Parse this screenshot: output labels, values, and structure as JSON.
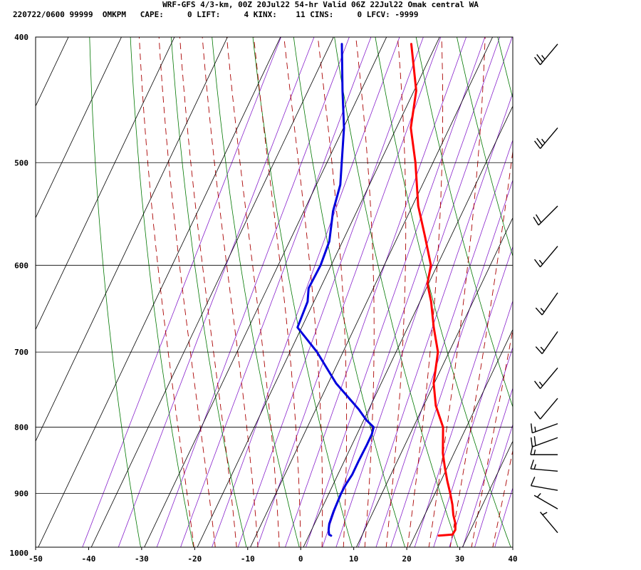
{
  "header": {
    "line1": "WRF-GFS 4/3-km, 00Z 20Jul22 54-hr Valid 06Z 22Jul22 Omak central WA",
    "line2": "220722/0600 99999  OMKPM   CAPE:     0 LIFT:     4 KINX:    11 CINS:     0 LFCV: -9999"
  },
  "colors": {
    "temperature": "#ff0000",
    "dewpoint": "#0000dd",
    "isotherm": "#000000",
    "dry_adiabat": "#007700",
    "moist_adiabat": "#aa0000",
    "mixing_ratio": "#8822cc",
    "wind_barb": "#000000"
  },
  "chart_data": {
    "type": "line",
    "title": "",
    "xlabel": "",
    "ylabel": "",
    "x_ticks": [
      -50,
      -40,
      -30,
      -20,
      -10,
      0,
      10,
      20,
      30,
      40
    ],
    "y_ticks": [
      400,
      500,
      600,
      700,
      800,
      900,
      1000
    ],
    "xlim": [
      -50,
      40
    ],
    "ylim": [
      1050,
      400
    ],
    "y_scale": "log-pressure",
    "grid": true,
    "legend": "none",
    "series": [
      {
        "key": "temperature",
        "points": [
          [
            970,
            24.5
          ],
          [
            968,
            27.0
          ],
          [
            960,
            27.1
          ],
          [
            950,
            26.6
          ],
          [
            935,
            25.4
          ],
          [
            918,
            24.3
          ],
          [
            900,
            22.9
          ],
          [
            880,
            21.2
          ],
          [
            860,
            19.6
          ],
          [
            838,
            17.9
          ],
          [
            800,
            15.6
          ],
          [
            770,
            12.3
          ],
          [
            740,
            9.9
          ],
          [
            700,
            7.9
          ],
          [
            670,
            4.9
          ],
          [
            640,
            2.1
          ],
          [
            620,
            -0.2
          ],
          [
            600,
            -1.2
          ],
          [
            570,
            -4.9
          ],
          [
            540,
            -8.9
          ],
          [
            500,
            -13.3
          ],
          [
            470,
            -17.3
          ],
          [
            440,
            -19.6
          ],
          [
            405,
            -24.7
          ]
        ]
      },
      {
        "key": "dewpoint",
        "points": [
          [
            970,
            4.2
          ],
          [
            968,
            3.7
          ],
          [
            960,
            3.2
          ],
          [
            950,
            2.8
          ],
          [
            930,
            2.5
          ],
          [
            900,
            2.3
          ],
          [
            885,
            2.4
          ],
          [
            870,
            2.7
          ],
          [
            850,
            2.7
          ],
          [
            825,
            2.8
          ],
          [
            810,
            2.8
          ],
          [
            800,
            2.5
          ],
          [
            790,
            0.5
          ],
          [
            775,
            -1.9
          ],
          [
            740,
            -8.5
          ],
          [
            700,
            -14.9
          ],
          [
            670,
            -20.8
          ],
          [
            640,
            -21.2
          ],
          [
            625,
            -22.2
          ],
          [
            600,
            -22.0
          ],
          [
            575,
            -22.5
          ],
          [
            545,
            -24.5
          ],
          [
            520,
            -25.5
          ],
          [
            500,
            -27.2
          ],
          [
            470,
            -29.9
          ],
          [
            440,
            -33.5
          ],
          [
            405,
            -37.8
          ]
        ]
      }
    ],
    "wind_barbs": [
      {
        "p": 405,
        "dir": 220,
        "kt": 25
      },
      {
        "p": 470,
        "dir": 220,
        "kt": 25
      },
      {
        "p": 540,
        "dir": 225,
        "kt": 20
      },
      {
        "p": 580,
        "dir": 220,
        "kt": 15
      },
      {
        "p": 630,
        "dir": 215,
        "kt": 15
      },
      {
        "p": 675,
        "dir": 215,
        "kt": 15
      },
      {
        "p": 720,
        "dir": 220,
        "kt": 15
      },
      {
        "p": 760,
        "dir": 220,
        "kt": 10
      },
      {
        "p": 795,
        "dir": 250,
        "kt": 15
      },
      {
        "p": 815,
        "dir": 250,
        "kt": 20
      },
      {
        "p": 840,
        "dir": 270,
        "kt": 15
      },
      {
        "p": 865,
        "dir": 275,
        "kt": 15
      },
      {
        "p": 895,
        "dir": 280,
        "kt": 10
      },
      {
        "p": 925,
        "dir": 300,
        "kt": 5
      },
      {
        "p": 965,
        "dir": 320,
        "kt": 5
      }
    ]
  }
}
